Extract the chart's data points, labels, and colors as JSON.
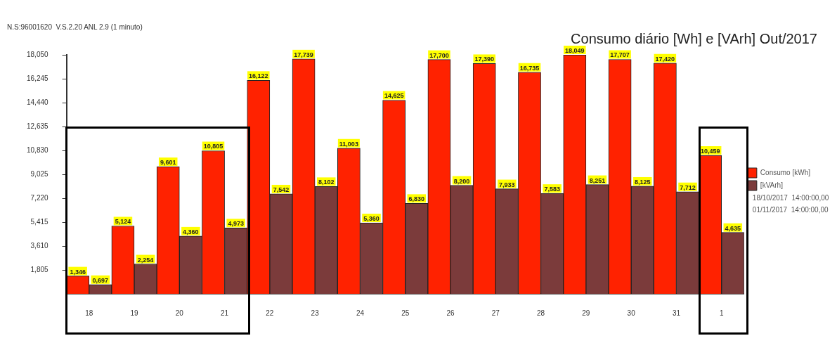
{
  "chart_data": {
    "type": "bar",
    "title": "Consumo diário [Wh] e [VArh] Out/2017",
    "annotations": [
      "N.S:96001620  V.S.2.20 ANL 2.9 (1 minuto)",
      "18/10/2017  14:00:00,00",
      "01/11/2017  14:00:00,00"
    ],
    "categories": [
      "18",
      "19",
      "20",
      "21",
      "22",
      "23",
      "24",
      "25",
      "26",
      "27",
      "28",
      "29",
      "30",
      "31",
      "1"
    ],
    "series": [
      {
        "name": "Consumo [kWh]",
        "color": "#ff2200",
        "values": [
          1.346,
          5.124,
          9.601,
          10.805,
          16.122,
          17.739,
          11.003,
          14.625,
          17.7,
          17.39,
          16.735,
          18.049,
          17.707,
          17.42,
          10.459
        ],
        "value_labels": [
          "1,346",
          "5,124",
          "9,601",
          "10,805",
          "16,122",
          "17,739",
          "11,003",
          "14,625",
          "17,700",
          "17,390",
          "16,735",
          "18,049",
          "17,707",
          "17,420",
          "10,459"
        ]
      },
      {
        "name": "[kVArh]",
        "color": "#7b3b3b",
        "values": [
          0.697,
          2.254,
          4.36,
          4.973,
          7.542,
          8.102,
          5.36,
          6.83,
          8.2,
          7.933,
          7.583,
          8.251,
          8.125,
          7.712,
          4.635
        ],
        "value_labels": [
          "0,697",
          "2,254",
          "4,360",
          "4,973",
          "7,542",
          "8,102",
          "5,360",
          "6,830",
          "8,200",
          "7,933",
          "7,583",
          "8,251",
          "8,125",
          "7,712",
          "4,635"
        ]
      }
    ],
    "ylim": [
      0,
      18.05
    ],
    "yticks": [
      {
        "value": 1.805,
        "label": "1,805"
      },
      {
        "value": 3.61,
        "label": "3,610"
      },
      {
        "value": 5.415,
        "label": "5,415"
      },
      {
        "value": 7.22,
        "label": "7,220"
      },
      {
        "value": 9.025,
        "label": "9,025"
      },
      {
        "value": 10.83,
        "label": "10,830"
      },
      {
        "value": 12.635,
        "label": "12,635"
      },
      {
        "value": 14.44,
        "label": "14,440"
      },
      {
        "value": 16.245,
        "label": "16,245"
      },
      {
        "value": 18.05,
        "label": "18,050"
      }
    ],
    "legend": "right"
  }
}
